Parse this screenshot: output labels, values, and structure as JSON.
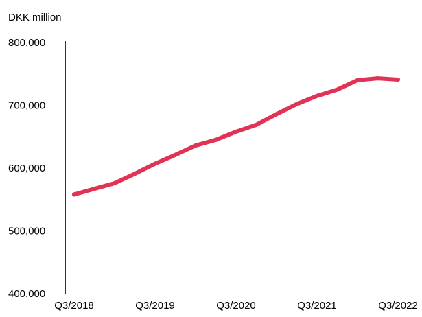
{
  "chart_data": {
    "type": "line",
    "ylabel": "DKK million",
    "ylim": [
      400000,
      800000
    ],
    "y_ticks": [
      400000,
      500000,
      600000,
      700000,
      800000
    ],
    "y_tick_labels": [
      "400,000",
      "500,000",
      "600,000",
      "700,000",
      "800,000"
    ],
    "x_tick_labels": [
      "Q3/2018",
      "Q3/2019",
      "Q3/2020",
      "Q3/2021",
      "Q3/2022"
    ],
    "x": [
      "Q3/2018",
      "Q4/2018",
      "Q1/2019",
      "Q2/2019",
      "Q3/2019",
      "Q4/2019",
      "Q1/2020",
      "Q2/2020",
      "Q3/2020",
      "Q4/2020",
      "Q1/2021",
      "Q2/2021",
      "Q3/2021",
      "Q4/2021",
      "Q1/2022",
      "Q2/2022",
      "Q3/2022"
    ],
    "series": [
      {
        "color": "#e03355",
        "values": [
          558000,
          567000,
          576000,
          591000,
          607000,
          621000,
          636000,
          645000,
          658000,
          669000,
          686000,
          702000,
          715000,
          725000,
          740000,
          743000,
          741000
        ]
      }
    ],
    "grid": false
  }
}
